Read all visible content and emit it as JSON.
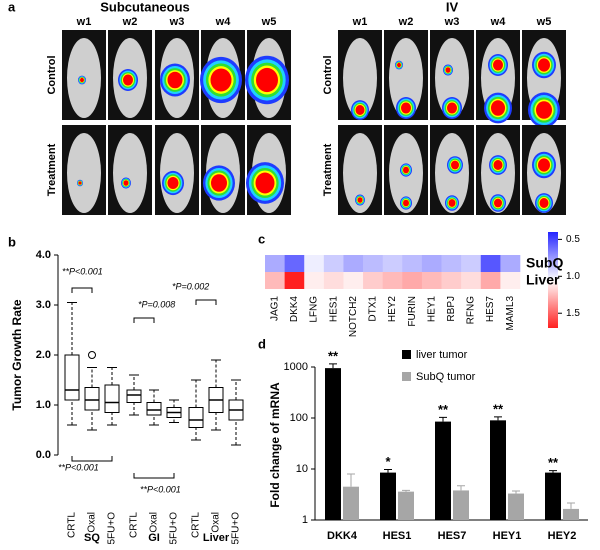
{
  "panel_a": {
    "label": "a",
    "groups": [
      {
        "title": "Subcutaneous",
        "columns": [
          "w1",
          "w2",
          "w3",
          "w4",
          "w5"
        ],
        "rows": [
          "Control",
          "Treatment"
        ]
      },
      {
        "title": "IV",
        "columns": [
          "w1",
          "w2",
          "w3",
          "w4",
          "w5"
        ],
        "rows": [
          "Control",
          "Treatment"
        ]
      }
    ]
  },
  "chart_data": [
    {
      "type": "box",
      "label": "b",
      "y_label": "Tumor Growth Rate",
      "categories": [
        "CRTL",
        "Oxal",
        "5FU+O",
        "CRTL",
        "Oxal",
        "5FU+O",
        "CRTL",
        "Oxal",
        "5FU+O"
      ],
      "groups": [
        "SQ",
        "GI",
        "Liver"
      ],
      "boxes": [
        {
          "min": 0.6,
          "q1": 1.1,
          "median": 1.3,
          "q3": 2.0,
          "max": 3.05,
          "outliers": []
        },
        {
          "min": 0.5,
          "q1": 0.9,
          "median": 1.1,
          "q3": 1.35,
          "max": 1.75,
          "outliers": [
            2.0
          ]
        },
        {
          "min": 0.6,
          "q1": 0.85,
          "median": 1.05,
          "q3": 1.4,
          "max": 1.75,
          "outliers": []
        },
        {
          "min": 0.8,
          "q1": 1.05,
          "median": 1.2,
          "q3": 1.3,
          "max": 1.6,
          "outliers": []
        },
        {
          "min": 0.6,
          "q1": 0.8,
          "median": 0.9,
          "q3": 1.05,
          "max": 1.3,
          "outliers": []
        },
        {
          "min": 0.65,
          "q1": 0.75,
          "median": 0.85,
          "q3": 0.95,
          "max": 1.1,
          "outliers": []
        },
        {
          "min": 0.3,
          "q1": 0.55,
          "median": 0.7,
          "q3": 0.95,
          "max": 1.5,
          "outliers": []
        },
        {
          "min": 0.5,
          "q1": 0.85,
          "median": 1.1,
          "q3": 1.35,
          "max": 1.9,
          "outliers": []
        },
        {
          "min": 0.2,
          "q1": 0.7,
          "median": 0.9,
          "q3": 1.1,
          "max": 1.5,
          "outliers": []
        }
      ],
      "ylim": [
        0,
        4.0
      ],
      "yticks": [
        {
          "value": 0,
          "label": "0.0"
        },
        {
          "value": 1,
          "label": "1.0"
        },
        {
          "value": 2,
          "label": "2.0"
        },
        {
          "value": 3,
          "label": "3.0"
        },
        {
          "value": 4,
          "label": "4.0"
        }
      ],
      "annotations": [
        "**P<0.001",
        "**P<0.001",
        "*P=0.008",
        "**P<0.001",
        "*P=0.002"
      ]
    },
    {
      "type": "heatmap",
      "label": "c",
      "rows": [
        "SubQ",
        "Liver"
      ],
      "columns": [
        "JAG1",
        "DKK4",
        "LFNG",
        "HES1",
        "NOTCH2",
        "DTX1",
        "HEY2",
        "FURIN",
        "HEY1",
        "RBPJ",
        "RFNG",
        "HES7",
        "MAML3"
      ],
      "values": [
        [
          0.8,
          0.6,
          1.0,
          0.9,
          0.8,
          0.85,
          0.9,
          0.85,
          0.8,
          0.85,
          0.9,
          0.55,
          0.8
        ],
        [
          1.25,
          1.7,
          1.1,
          1.15,
          1.1,
          1.2,
          1.25,
          1.3,
          1.25,
          1.2,
          1.15,
          1.3,
          1.1
        ]
      ],
      "colormap": [
        "#2424ff",
        "#ffffff",
        "#ff2020"
      ],
      "clim": [
        0.4,
        1.7
      ],
      "cticks": [
        0.5,
        {
          "value": 1,
          "label": "1.0"
        },
        1.5
      ]
    },
    {
      "type": "bar",
      "label": "d",
      "y_label": "Fold change of mRNA",
      "log_scale": true,
      "categories": [
        "DKK4",
        "HES1",
        "HES7",
        "HEY1",
        "HEY2"
      ],
      "series": [
        {
          "name": "liver tumor",
          "color": "#000000",
          "values": [
            950,
            8.5,
            85,
            90,
            8.5
          ],
          "errors": [
            200,
            1.3,
            18,
            15,
            0.8
          ]
        },
        {
          "name": "SubQ tumor",
          "color": "#a6a6a6",
          "values": [
            4.5,
            3.6,
            3.8,
            3.3,
            1.65
          ],
          "errors": [
            3.5,
            0.2,
            0.9,
            0.4,
            0.5
          ]
        }
      ],
      "ylim": [
        1,
        1000
      ],
      "yticks": [
        1,
        10,
        100,
        1000
      ],
      "annotations": [
        "**",
        "*",
        "**",
        "**",
        "**"
      ]
    }
  ]
}
